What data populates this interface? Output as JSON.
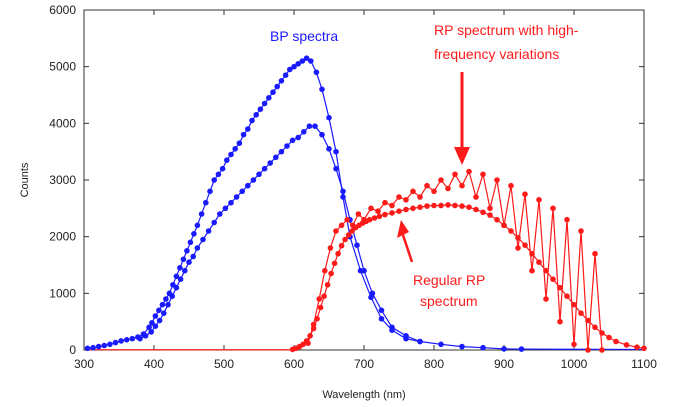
{
  "chart_data": {
    "type": "line",
    "xlabel": "Wavelength (nm)",
    "ylabel": "Counts",
    "xlim": [
      300,
      1100
    ],
    "ylim": [
      0,
      6000
    ],
    "xticks": [
      300,
      400,
      500,
      600,
      700,
      800,
      900,
      1000,
      1100
    ],
    "yticks": [
      0,
      1000,
      2000,
      3000,
      4000,
      5000,
      6000
    ],
    "grid": false,
    "colors": {
      "bp": "#1a1aff",
      "rp": "#ff1a1a"
    },
    "annotations": [
      {
        "text": "BP spectra",
        "color": "#1a1aff"
      },
      {
        "text": "RP spectrum with high-frequency variations",
        "lines": [
          "RP spectrum with high-",
          "frequency variations"
        ],
        "color": "#ff1a1a"
      },
      {
        "text": "Regular RP spectrum",
        "lines": [
          "Regular RP",
          "spectrum"
        ],
        "color": "#ff1a1a"
      }
    ],
    "series": [
      {
        "group": "bp",
        "x": [
          305,
          313,
          321,
          329,
          337,
          345,
          353,
          361,
          369,
          377,
          385,
          393,
          397,
          402,
          407,
          412,
          417,
          422,
          427,
          432,
          437,
          442,
          447,
          452,
          457,
          462,
          468,
          474,
          480,
          486,
          492,
          498,
          504,
          510,
          516,
          522,
          528,
          534,
          540,
          546,
          552,
          558,
          564,
          570,
          576,
          582,
          588,
          594,
          600,
          606,
          612,
          618,
          624,
          632,
          640,
          650,
          660,
          670,
          680,
          695,
          710,
          725,
          740,
          760,
          780,
          810,
          840,
          870,
          900,
          925
        ],
        "y": [
          30,
          40,
          60,
          80,
          100,
          130,
          160,
          180,
          200,
          230,
          280,
          400,
          480,
          600,
          700,
          800,
          900,
          1000,
          1150,
          1300,
          1450,
          1600,
          1750,
          1900,
          2050,
          2200,
          2400,
          2600,
          2800,
          3000,
          3100,
          3200,
          3350,
          3450,
          3550,
          3650,
          3800,
          3900,
          4050,
          4150,
          4250,
          4350,
          4450,
          4550,
          4650,
          4750,
          4850,
          4950,
          5000,
          5050,
          5100,
          5150,
          5100,
          4900,
          4600,
          4100,
          3500,
          2700,
          2000,
          1400,
          930,
          550,
          350,
          200,
          150,
          100,
          60,
          40,
          20,
          15
        ]
      },
      {
        "group": "bp",
        "x": [
          380,
          388,
          396,
          402,
          408,
          414,
          420,
          426,
          432,
          438,
          444,
          450,
          456,
          462,
          470,
          478,
          486,
          494,
          502,
          510,
          518,
          526,
          534,
          542,
          550,
          558,
          566,
          574,
          582,
          590,
          598,
          606,
          614,
          622,
          630,
          640,
          650,
          660,
          670,
          680,
          690,
          700,
          712,
          725,
          740,
          760,
          780
        ],
        "y": [
          200,
          250,
          320,
          420,
          520,
          650,
          800,
          950,
          1100,
          1250,
          1400,
          1550,
          1650,
          1800,
          1950,
          2100,
          2250,
          2400,
          2500,
          2600,
          2700,
          2800,
          2900,
          3000,
          3100,
          3200,
          3300,
          3400,
          3500,
          3600,
          3700,
          3750,
          3850,
          3950,
          3950,
          3800,
          3550,
          3200,
          2800,
          2300,
          1850,
          1400,
          1000,
          700,
          400,
          250,
          150
        ]
      },
      {
        "group": "rp",
        "x": [
          598,
          603,
          608,
          613,
          618,
          623,
          628,
          633,
          638,
          643,
          648,
          653,
          658,
          663,
          668,
          673,
          678,
          683,
          688,
          693,
          698,
          703,
          708,
          715,
          722,
          730,
          740,
          750,
          760,
          770,
          780,
          790,
          800,
          810,
          820,
          830,
          840,
          850,
          860,
          870,
          880,
          890,
          900,
          910,
          920,
          930,
          940,
          950,
          960,
          970,
          980,
          990,
          1000,
          1010,
          1020,
          1030,
          1040,
          1050,
          1060,
          1075,
          1090,
          1100
        ],
        "y": [
          10,
          30,
          60,
          100,
          160,
          250,
          380,
          550,
          750,
          950,
          1150,
          1350,
          1530,
          1700,
          1840,
          1950,
          2030,
          2100,
          2160,
          2200,
          2240,
          2270,
          2300,
          2330,
          2360,
          2390,
          2420,
          2450,
          2480,
          2500,
          2520,
          2540,
          2550,
          2550,
          2560,
          2550,
          2540,
          2520,
          2480,
          2430,
          2380,
          2300,
          2200,
          2100,
          1980,
          1850,
          1700,
          1550,
          1400,
          1250,
          1100,
          950,
          800,
          650,
          520,
          400,
          300,
          220,
          150,
          90,
          50,
          30
        ]
      },
      {
        "group": "rp",
        "x": [
          620,
          628,
          636,
          644,
          652,
          660,
          668,
          676,
          684,
          692,
          700,
          710,
          720,
          730,
          740,
          750,
          760,
          770,
          780,
          790,
          800,
          810,
          820,
          830,
          840,
          850,
          860,
          870,
          880,
          890,
          900,
          910,
          920,
          930,
          940,
          950,
          960,
          970,
          980,
          990,
          1000,
          1010,
          1020,
          1030,
          1040
        ],
        "y": [
          120,
          450,
          900,
          1400,
          1800,
          2100,
          2200,
          2300,
          2200,
          2400,
          2300,
          2500,
          2450,
          2600,
          2550,
          2700,
          2650,
          2800,
          2700,
          2900,
          2800,
          3000,
          2850,
          3100,
          2900,
          3150,
          2700,
          3100,
          2500,
          3000,
          2200,
          2900,
          1800,
          2750,
          1400,
          2650,
          900,
          2500,
          500,
          2300,
          100,
          2100,
          0,
          1700,
          0
        ]
      }
    ]
  }
}
